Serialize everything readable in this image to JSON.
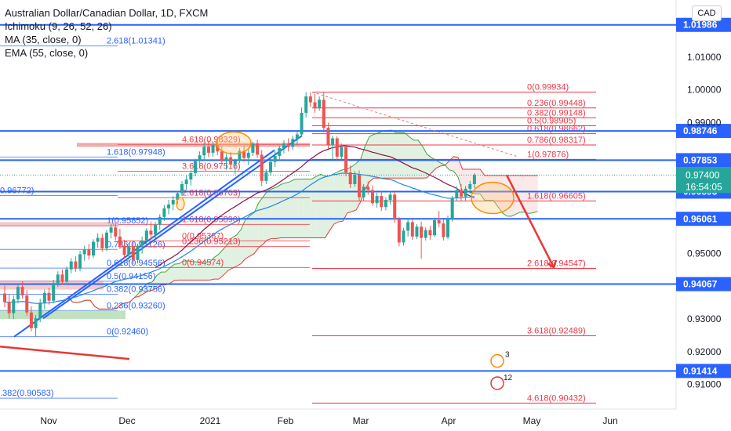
{
  "header": {
    "title": "Australian Dollar/Canadian Dollar, 1D, FXCM",
    "indicators": [
      "Ichimoku (9, 26, 52, 26)",
      "MA (35, close, 0)",
      "EMA (55, close, 0)"
    ],
    "currency": "CAD"
  },
  "countdown": "16:54:05",
  "colors": {
    "up": "#26a69a",
    "down": "#ef5350",
    "blue": "#2962ff",
    "fib_red": "#f23645",
    "fib_blue": "#2962ff",
    "kumo_green": "#c8e6c9",
    "kumo_red": "#f8d7d7"
  },
  "chart_data": {
    "type": "candlestick",
    "symbol": "AUDCAD",
    "timeframe": "1D",
    "y_range": [
      0.9025,
      1.0265
    ],
    "x_axis_labels": [
      "Nov",
      "Dec",
      "2021",
      "Feb",
      "Mar",
      "Apr",
      "May",
      "Jun"
    ],
    "y_axis_labels": [
      "1.01000",
      "1.00000",
      "0.99000",
      "0.95000",
      "0.93000",
      "0.92000",
      "0.91000"
    ],
    "horizontal_levels": [
      1.01986,
      0.98746,
      0.97853,
      0.96893,
      0.96061,
      0.94067,
      0.91414
    ],
    "last_price": 0.974,
    "fib_right": [
      {
        "ratio": "0",
        "value": 0.99934,
        "label": "0(0.99934)"
      },
      {
        "ratio": "0.236",
        "value": 0.99448,
        "label": "0.236(0.99448)"
      },
      {
        "ratio": "0.382",
        "value": 0.99148,
        "label": "0.382(0.99148)"
      },
      {
        "ratio": "0.5",
        "value": 0.98905,
        "label": "0.5(0.98905)"
      },
      {
        "ratio": "0.618",
        "value": 0.98662,
        "label": "0.618(0.98662)"
      },
      {
        "ratio": "0.786",
        "value": 0.98317,
        "label": "0.786(0.98317)"
      },
      {
        "ratio": "1",
        "value": 0.97876,
        "label": "1(0.97876)"
      },
      {
        "ratio": "1.618",
        "value": 0.96605,
        "label": "1.618(0.96605)"
      },
      {
        "ratio": "2.618",
        "value": 0.94547,
        "label": "2.618(0.94547)"
      },
      {
        "ratio": "3.618",
        "value": 0.92489,
        "label": "3.618(0.92489)"
      },
      {
        "ratio": "4.618",
        "value": 0.90432,
        "label": "4.618(0.90432)"
      }
    ],
    "fib_left_blue": [
      {
        "value": 1.01341,
        "label": "2.618(1.01341)"
      },
      {
        "value": 0.97948,
        "label": "1.618(0.97948)"
      },
      {
        "value": 0.96772,
        "label": "0.96772)"
      },
      {
        "value": 0.95852,
        "label": "1(0.95852)"
      },
      {
        "value": 0.95126,
        "label": "0.786(0.95126)"
      },
      {
        "value": 0.94556,
        "label": "0.618(0.94556)"
      },
      {
        "value": 0.94156,
        "label": "0.5(0.94156)"
      },
      {
        "value": 0.93756,
        "label": "0.382(0.93756)"
      },
      {
        "value": 0.9326,
        "label": "0.236(0.93260)"
      },
      {
        "value": 0.9246,
        "label": "0(0.92460)"
      },
      {
        "value": 0.90583,
        "label": ".382(0.90583)"
      }
    ],
    "fib_mid_red": [
      {
        "value": 0.98329,
        "label": "4.618(0.98329)"
      },
      {
        "value": 0.97516,
        "label": "3.618(0.97516)"
      },
      {
        "value": 0.96703,
        "label": "2.618(0.96703)"
      },
      {
        "value": 0.9589,
        "label": "1.618(0.95890)"
      },
      {
        "value": 0.95387,
        "label": "0(0.95387)"
      },
      {
        "value": 0.95213,
        "label": "0.236(0.95213)"
      },
      {
        "value": 0.94574,
        "label": "0(0.94574)"
      }
    ],
    "candles": [
      {
        "o": 0.9378,
        "h": 0.9402,
        "l": 0.9336,
        "c": 0.9352
      },
      {
        "o": 0.9352,
        "h": 0.9376,
        "l": 0.9302,
        "c": 0.9318
      },
      {
        "o": 0.9318,
        "h": 0.9372,
        "l": 0.93,
        "c": 0.936
      },
      {
        "o": 0.936,
        "h": 0.9406,
        "l": 0.9348,
        "c": 0.9398
      },
      {
        "o": 0.9398,
        "h": 0.9415,
        "l": 0.9362,
        "c": 0.9372
      },
      {
        "o": 0.9372,
        "h": 0.9388,
        "l": 0.931,
        "c": 0.932
      },
      {
        "o": 0.932,
        "h": 0.9338,
        "l": 0.9262,
        "c": 0.9272
      },
      {
        "o": 0.9272,
        "h": 0.9312,
        "l": 0.9246,
        "c": 0.9302
      },
      {
        "o": 0.9302,
        "h": 0.9362,
        "l": 0.929,
        "c": 0.935
      },
      {
        "o": 0.935,
        "h": 0.939,
        "l": 0.933,
        "c": 0.938
      },
      {
        "o": 0.938,
        "h": 0.9396,
        "l": 0.9344,
        "c": 0.9356
      },
      {
        "o": 0.9356,
        "h": 0.942,
        "l": 0.9348,
        "c": 0.941
      },
      {
        "o": 0.941,
        "h": 0.9446,
        "l": 0.9398,
        "c": 0.9436
      },
      {
        "o": 0.9436,
        "h": 0.9452,
        "l": 0.9404,
        "c": 0.9414
      },
      {
        "o": 0.9414,
        "h": 0.946,
        "l": 0.9406,
        "c": 0.9452
      },
      {
        "o": 0.9452,
        "h": 0.9486,
        "l": 0.944,
        "c": 0.9476
      },
      {
        "o": 0.9476,
        "h": 0.9492,
        "l": 0.9444,
        "c": 0.9454
      },
      {
        "o": 0.9454,
        "h": 0.9508,
        "l": 0.9446,
        "c": 0.9498
      },
      {
        "o": 0.9498,
        "h": 0.9524,
        "l": 0.9478,
        "c": 0.9512
      },
      {
        "o": 0.9512,
        "h": 0.953,
        "l": 0.9482,
        "c": 0.9494
      },
      {
        "o": 0.9494,
        "h": 0.9544,
        "l": 0.9486,
        "c": 0.9536
      },
      {
        "o": 0.9536,
        "h": 0.9562,
        "l": 0.9518,
        "c": 0.9548
      },
      {
        "o": 0.9548,
        "h": 0.956,
        "l": 0.9506,
        "c": 0.9516
      },
      {
        "o": 0.9516,
        "h": 0.9572,
        "l": 0.9508,
        "c": 0.9564
      },
      {
        "o": 0.9564,
        "h": 0.959,
        "l": 0.9546,
        "c": 0.958
      },
      {
        "o": 0.958,
        "h": 0.9592,
        "l": 0.954,
        "c": 0.9552
      },
      {
        "o": 0.9552,
        "h": 0.9576,
        "l": 0.9514,
        "c": 0.9524
      },
      {
        "o": 0.9524,
        "h": 0.9542,
        "l": 0.9484,
        "c": 0.9496
      },
      {
        "o": 0.9496,
        "h": 0.9532,
        "l": 0.9474,
        "c": 0.9522
      },
      {
        "o": 0.9522,
        "h": 0.954,
        "l": 0.9468,
        "c": 0.948
      },
      {
        "o": 0.948,
        "h": 0.953,
        "l": 0.947,
        "c": 0.9524
      },
      {
        "o": 0.9524,
        "h": 0.9552,
        "l": 0.95,
        "c": 0.954
      },
      {
        "o": 0.954,
        "h": 0.9578,
        "l": 0.9528,
        "c": 0.957
      },
      {
        "o": 0.957,
        "h": 0.9598,
        "l": 0.9542,
        "c": 0.9558
      },
      {
        "o": 0.9558,
        "h": 0.9596,
        "l": 0.9546,
        "c": 0.9588
      },
      {
        "o": 0.9588,
        "h": 0.962,
        "l": 0.9572,
        "c": 0.9612
      },
      {
        "o": 0.9612,
        "h": 0.9648,
        "l": 0.96,
        "c": 0.9638
      },
      {
        "o": 0.9638,
        "h": 0.9664,
        "l": 0.962,
        "c": 0.965
      },
      {
        "o": 0.965,
        "h": 0.9676,
        "l": 0.9632,
        "c": 0.9664
      },
      {
        "o": 0.9664,
        "h": 0.9692,
        "l": 0.965,
        "c": 0.9684
      },
      {
        "o": 0.9684,
        "h": 0.9722,
        "l": 0.9676,
        "c": 0.9712
      },
      {
        "o": 0.9712,
        "h": 0.9738,
        "l": 0.9694,
        "c": 0.9726
      },
      {
        "o": 0.9726,
        "h": 0.9754,
        "l": 0.9708,
        "c": 0.9746
      },
      {
        "o": 0.9746,
        "h": 0.979,
        "l": 0.9736,
        "c": 0.9782
      },
      {
        "o": 0.9782,
        "h": 0.9812,
        "l": 0.9764,
        "c": 0.98
      },
      {
        "o": 0.98,
        "h": 0.9838,
        "l": 0.9786,
        "c": 0.9826
      },
      {
        "o": 0.9826,
        "h": 0.9846,
        "l": 0.9794,
        "c": 0.9808
      },
      {
        "o": 0.9808,
        "h": 0.984,
        "l": 0.9796,
        "c": 0.9832
      },
      {
        "o": 0.9832,
        "h": 0.985,
        "l": 0.98,
        "c": 0.9812
      },
      {
        "o": 0.9812,
        "h": 0.9828,
        "l": 0.9774,
        "c": 0.9782
      },
      {
        "o": 0.9782,
        "h": 0.9804,
        "l": 0.9756,
        "c": 0.9794
      },
      {
        "o": 0.9794,
        "h": 0.981,
        "l": 0.9764,
        "c": 0.9772
      },
      {
        "o": 0.9772,
        "h": 0.979,
        "l": 0.9742,
        "c": 0.9784
      },
      {
        "o": 0.9784,
        "h": 0.9822,
        "l": 0.9776,
        "c": 0.9814
      },
      {
        "o": 0.9814,
        "h": 0.983,
        "l": 0.978,
        "c": 0.9792
      },
      {
        "o": 0.9792,
        "h": 0.9818,
        "l": 0.977,
        "c": 0.9808
      },
      {
        "o": 0.9808,
        "h": 0.9842,
        "l": 0.9798,
        "c": 0.9836
      },
      {
        "o": 0.9836,
        "h": 0.9848,
        "l": 0.9792,
        "c": 0.9802
      },
      {
        "o": 0.9802,
        "h": 0.9816,
        "l": 0.9706,
        "c": 0.9722
      },
      {
        "o": 0.9722,
        "h": 0.9758,
        "l": 0.9712,
        "c": 0.9748
      },
      {
        "o": 0.9748,
        "h": 0.979,
        "l": 0.9738,
        "c": 0.978
      },
      {
        "o": 0.978,
        "h": 0.9812,
        "l": 0.9764,
        "c": 0.9798
      },
      {
        "o": 0.9798,
        "h": 0.983,
        "l": 0.9782,
        "c": 0.9822
      },
      {
        "o": 0.9822,
        "h": 0.9846,
        "l": 0.9806,
        "c": 0.9836
      },
      {
        "o": 0.9836,
        "h": 0.9852,
        "l": 0.9812,
        "c": 0.9826
      },
      {
        "o": 0.9826,
        "h": 0.986,
        "l": 0.9816,
        "c": 0.985
      },
      {
        "o": 0.985,
        "h": 0.9876,
        "l": 0.983,
        "c": 0.9864
      },
      {
        "o": 0.9864,
        "h": 0.9946,
        "l": 0.9856,
        "c": 0.993
      },
      {
        "o": 0.993,
        "h": 0.9993,
        "l": 0.9916,
        "c": 0.998
      },
      {
        "o": 0.998,
        "h": 0.9992,
        "l": 0.9948,
        "c": 0.9962
      },
      {
        "o": 0.9962,
        "h": 0.9988,
        "l": 0.993,
        "c": 0.9944
      },
      {
        "o": 0.9944,
        "h": 0.998,
        "l": 0.9936,
        "c": 0.997
      },
      {
        "o": 0.997,
        "h": 0.9992,
        "l": 0.987,
        "c": 0.9884
      },
      {
        "o": 0.9884,
        "h": 0.99,
        "l": 0.982,
        "c": 0.9832
      },
      {
        "o": 0.9832,
        "h": 0.986,
        "l": 0.9786,
        "c": 0.9852
      },
      {
        "o": 0.9852,
        "h": 0.9858,
        "l": 0.9786,
        "c": 0.9796
      },
      {
        "o": 0.9796,
        "h": 0.9836,
        "l": 0.9782,
        "c": 0.9826
      },
      {
        "o": 0.9826,
        "h": 0.9832,
        "l": 0.9736,
        "c": 0.9748
      },
      {
        "o": 0.9748,
        "h": 0.977,
        "l": 0.97,
        "c": 0.9712
      },
      {
        "o": 0.9712,
        "h": 0.9752,
        "l": 0.9704,
        "c": 0.974
      },
      {
        "o": 0.974,
        "h": 0.9754,
        "l": 0.9662,
        "c": 0.9672
      },
      {
        "o": 0.9672,
        "h": 0.9712,
        "l": 0.966,
        "c": 0.9704
      },
      {
        "o": 0.9704,
        "h": 0.972,
        "l": 0.968,
        "c": 0.9694
      },
      {
        "o": 0.9694,
        "h": 0.9708,
        "l": 0.9646,
        "c": 0.9654
      },
      {
        "o": 0.9654,
        "h": 0.9686,
        "l": 0.964,
        "c": 0.9676
      },
      {
        "o": 0.9676,
        "h": 0.9692,
        "l": 0.963,
        "c": 0.9642
      },
      {
        "o": 0.9642,
        "h": 0.9672,
        "l": 0.9632,
        "c": 0.9664
      },
      {
        "o": 0.9664,
        "h": 0.969,
        "l": 0.965,
        "c": 0.968
      },
      {
        "o": 0.968,
        "h": 0.9688,
        "l": 0.9594,
        "c": 0.9604
      },
      {
        "o": 0.9604,
        "h": 0.9612,
        "l": 0.9522,
        "c": 0.9534
      },
      {
        "o": 0.9534,
        "h": 0.9578,
        "l": 0.9524,
        "c": 0.957
      },
      {
        "o": 0.957,
        "h": 0.9608,
        "l": 0.9552,
        "c": 0.9596
      },
      {
        "o": 0.9596,
        "h": 0.9604,
        "l": 0.9542,
        "c": 0.9552
      },
      {
        "o": 0.9552,
        "h": 0.959,
        "l": 0.9544,
        "c": 0.9582
      },
      {
        "o": 0.9582,
        "h": 0.9598,
        "l": 0.9484,
        "c": 0.9548
      },
      {
        "o": 0.9548,
        "h": 0.958,
        "l": 0.954,
        "c": 0.9572
      },
      {
        "o": 0.9572,
        "h": 0.9584,
        "l": 0.9542,
        "c": 0.9556
      },
      {
        "o": 0.9556,
        "h": 0.961,
        "l": 0.955,
        "c": 0.9602
      },
      {
        "o": 0.9602,
        "h": 0.963,
        "l": 0.958,
        "c": 0.9592
      },
      {
        "o": 0.9592,
        "h": 0.9606,
        "l": 0.954,
        "c": 0.955
      },
      {
        "o": 0.955,
        "h": 0.9616,
        "l": 0.9544,
        "c": 0.9606
      },
      {
        "o": 0.9606,
        "h": 0.9676,
        "l": 0.9598,
        "c": 0.967
      },
      {
        "o": 0.967,
        "h": 0.9706,
        "l": 0.966,
        "c": 0.9694
      },
      {
        "o": 0.9694,
        "h": 0.9712,
        "l": 0.9662,
        "c": 0.9674
      },
      {
        "o": 0.9674,
        "h": 0.9706,
        "l": 0.9662,
        "c": 0.9698
      },
      {
        "o": 0.9698,
        "h": 0.9722,
        "l": 0.9682,
        "c": 0.9712
      },
      {
        "o": 0.9712,
        "h": 0.9746,
        "l": 0.97,
        "c": 0.974
      }
    ]
  }
}
